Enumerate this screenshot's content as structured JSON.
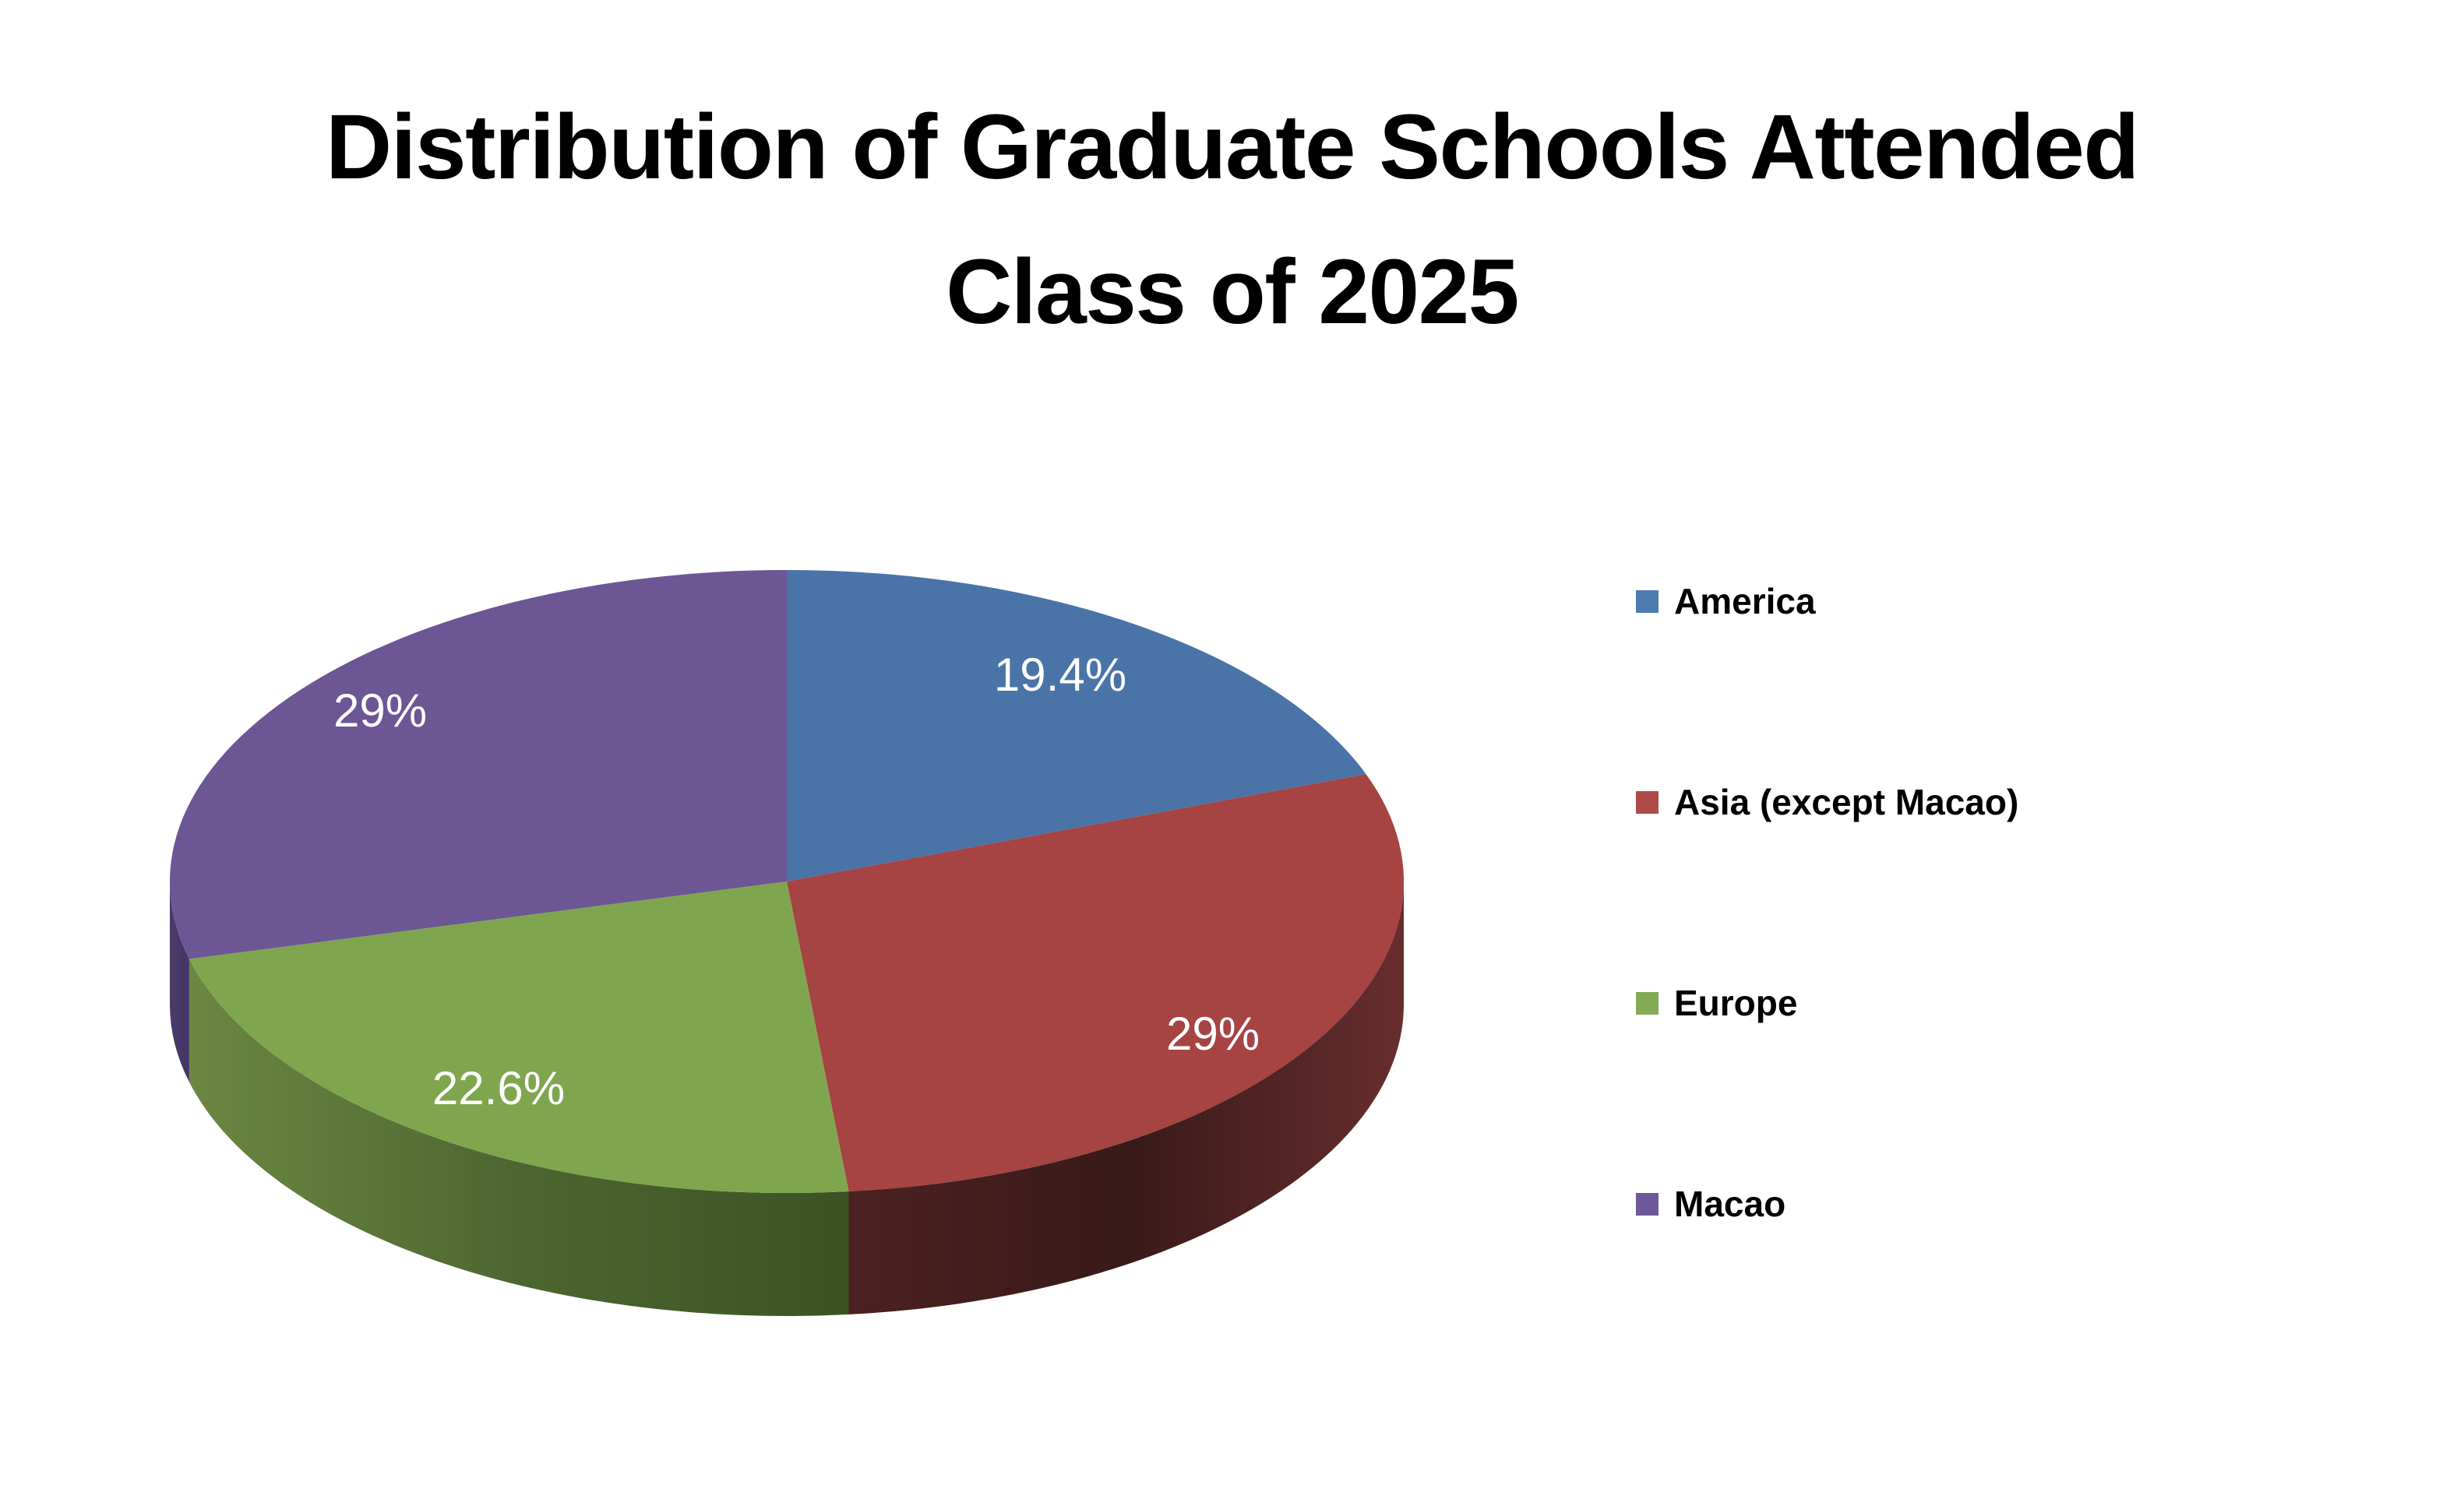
{
  "page": {
    "background": "#ffffff"
  },
  "title": {
    "line1": "Distribution of Graduate Schools Attended",
    "line2": "Class of 2025",
    "color": "#000000"
  },
  "chart_data": {
    "type": "pie",
    "style": "3d",
    "title": "Distribution of Graduate Schools Attended Class of 2025",
    "direction": "clockwise",
    "start_angle_deg": 0,
    "legend_position": "right",
    "grid": false,
    "label_color": "#ffffff",
    "series": [
      {
        "id": "america",
        "label": "America",
        "value": 19.4,
        "display": "19.4%",
        "color": "#4a73a8",
        "legend_color": "#4e7bb0",
        "side_gradient": null
      },
      {
        "id": "asia",
        "label": "Asia (except Macao)",
        "value": 29,
        "display": "29%",
        "color": "#a64343",
        "legend_color": "#af4a49",
        "side_gradient": [
          "#4c2121",
          "#381a19",
          "#682d2e"
        ]
      },
      {
        "id": "europe",
        "label": "Europe",
        "value": 22.6,
        "display": "22.6%",
        "color": "#7fa64f",
        "legend_color": "#83aa54",
        "side_gradient": [
          "#6b8742",
          "#4d6630",
          "#3b5323"
        ]
      },
      {
        "id": "macao",
        "label": "Macao",
        "value": 29,
        "display": "29%",
        "color": "#6c5694",
        "legend_color": "#6f5899",
        "side_gradient": [
          "#4a3b69",
          "#443565"
        ]
      }
    ]
  }
}
